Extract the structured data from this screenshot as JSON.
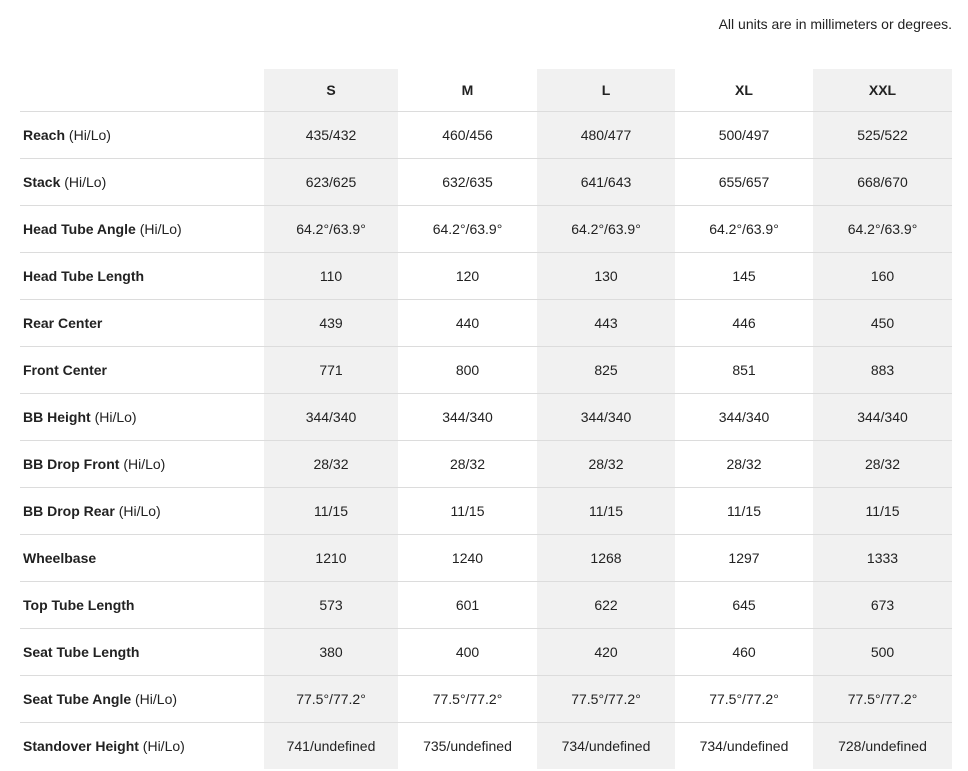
{
  "note": "All units are in millimeters or degrees.",
  "sizes": [
    "S",
    "M",
    "L",
    "XL",
    "XXL"
  ],
  "rows": [
    {
      "name": "Reach",
      "suffix": "(Hi/Lo)",
      "values": [
        "435/432",
        "460/456",
        "480/477",
        "500/497",
        "525/522"
      ]
    },
    {
      "name": "Stack",
      "suffix": "(Hi/Lo)",
      "values": [
        "623/625",
        "632/635",
        "641/643",
        "655/657",
        "668/670"
      ]
    },
    {
      "name": "Head Tube Angle",
      "suffix": "(Hi/Lo)",
      "values": [
        "64.2°/63.9°",
        "64.2°/63.9°",
        "64.2°/63.9°",
        "64.2°/63.9°",
        "64.2°/63.9°"
      ]
    },
    {
      "name": "Head Tube Length",
      "suffix": "",
      "values": [
        "110",
        "120",
        "130",
        "145",
        "160"
      ]
    },
    {
      "name": "Rear Center",
      "suffix": "",
      "values": [
        "439",
        "440",
        "443",
        "446",
        "450"
      ]
    },
    {
      "name": "Front Center",
      "suffix": "",
      "values": [
        "771",
        "800",
        "825",
        "851",
        "883"
      ]
    },
    {
      "name": "BB Height",
      "suffix": "(Hi/Lo)",
      "values": [
        "344/340",
        "344/340",
        "344/340",
        "344/340",
        "344/340"
      ]
    },
    {
      "name": "BB Drop Front",
      "suffix": "(Hi/Lo)",
      "values": [
        "28/32",
        "28/32",
        "28/32",
        "28/32",
        "28/32"
      ]
    },
    {
      "name": "BB Drop Rear",
      "suffix": "(Hi/Lo)",
      "values": [
        "11/15",
        "11/15",
        "11/15",
        "11/15",
        "11/15"
      ]
    },
    {
      "name": "Wheelbase",
      "suffix": "",
      "values": [
        "1210",
        "1240",
        "1268",
        "1297",
        "1333"
      ]
    },
    {
      "name": "Top Tube Length",
      "suffix": "",
      "values": [
        "573",
        "601",
        "622",
        "645",
        "673"
      ]
    },
    {
      "name": "Seat Tube Length",
      "suffix": "",
      "values": [
        "380",
        "400",
        "420",
        "460",
        "500"
      ]
    },
    {
      "name": "Seat Tube Angle",
      "suffix": "(Hi/Lo)",
      "values": [
        "77.5°/77.2°",
        "77.5°/77.2°",
        "77.5°/77.2°",
        "77.5°/77.2°",
        "77.5°/77.2°"
      ]
    },
    {
      "name": "Standover Height",
      "suffix": "(Hi/Lo)",
      "values": [
        "741/undefined",
        "735/undefined",
        "734/undefined",
        "734/undefined",
        "728/undefined"
      ]
    }
  ],
  "colors": {
    "shaded_column": "#f1f1f1",
    "divider": "#dcdcdc",
    "text": "#222222"
  }
}
